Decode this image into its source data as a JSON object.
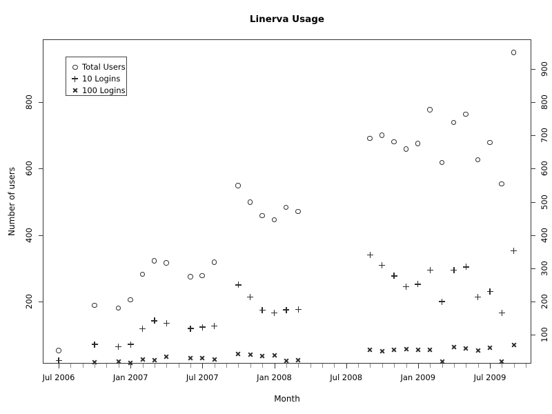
{
  "chart_data": {
    "type": "scatter",
    "title": "Linerva Usage",
    "xlabel": "Month",
    "ylabel": "Number of users",
    "x_tick_labels": [
      "Jul 2006",
      "Jan 2007",
      "Jul 2007",
      "Jan 2008",
      "Jul 2008",
      "Jan 2009",
      "Jul 2009"
    ],
    "x_minor_ticks": "monthly",
    "x_range_months": [
      "Jul 2006",
      "Oct 2009"
    ],
    "ylim": [
      0,
      960
    ],
    "y_ticks_left": [
      200,
      400,
      600,
      800
    ],
    "y_ticks_right": [
      100,
      200,
      300,
      400,
      500,
      600,
      700,
      800,
      900
    ],
    "grid": false,
    "legend": {
      "position": "top-left"
    },
    "months": [
      "Jul 2006",
      "Oct 2006",
      "Dec 2006",
      "Jan 2007",
      "Feb 2007",
      "Mar 2007",
      "Apr 2007",
      "Jun 2007",
      "Jul 2007",
      "Aug 2007",
      "Oct 2007",
      "Nov 2007",
      "Dec 2007",
      "Jan 2008",
      "Feb 2008",
      "Mar 2008",
      "Sep 2008",
      "Oct 2008",
      "Nov 2008",
      "Dec 2008",
      "Jan 2009",
      "Feb 2009",
      "Mar 2009",
      "Apr 2009",
      "May 2009",
      "Jun 2009",
      "Jul 2009",
      "Aug 2009",
      "Sep 2009"
    ],
    "month_offsets_from_jul2006": [
      0,
      3,
      5,
      6,
      7,
      8,
      9,
      11,
      12,
      13,
      15,
      16,
      17,
      18,
      19,
      20,
      26,
      27,
      28,
      29,
      30,
      31,
      32,
      33,
      34,
      35,
      36,
      37,
      38
    ],
    "series": [
      {
        "name": "Total Users",
        "marker": "circle",
        "values": [
          52,
          188,
          180,
          205,
          282,
          322,
          316,
          274,
          277,
          318,
          548,
          498,
          458,
          446,
          483,
          470,
          690,
          700,
          680,
          658,
          675,
          777,
          618,
          738,
          763,
          626,
          678,
          554,
          949
        ]
      },
      {
        "name": "10 Logins",
        "marker": "plus",
        "values": [
          22,
          71,
          64,
          71,
          118,
          142,
          135,
          119,
          123,
          126,
          250,
          214,
          174,
          166,
          175,
          176,
          340,
          309,
          277,
          244,
          252,
          294,
          200,
          295,
          304,
          213,
          230,
          165,
          352
        ]
      },
      {
        "name": "100 Logins",
        "marker": "x",
        "values": [
          null,
          17,
          19,
          16,
          26,
          23,
          34,
          29,
          29,
          26,
          42,
          40,
          35,
          38,
          22,
          24,
          55,
          50,
          54,
          57,
          54,
          54,
          19,
          64,
          59,
          53,
          61,
          19,
          69
        ]
      }
    ]
  }
}
